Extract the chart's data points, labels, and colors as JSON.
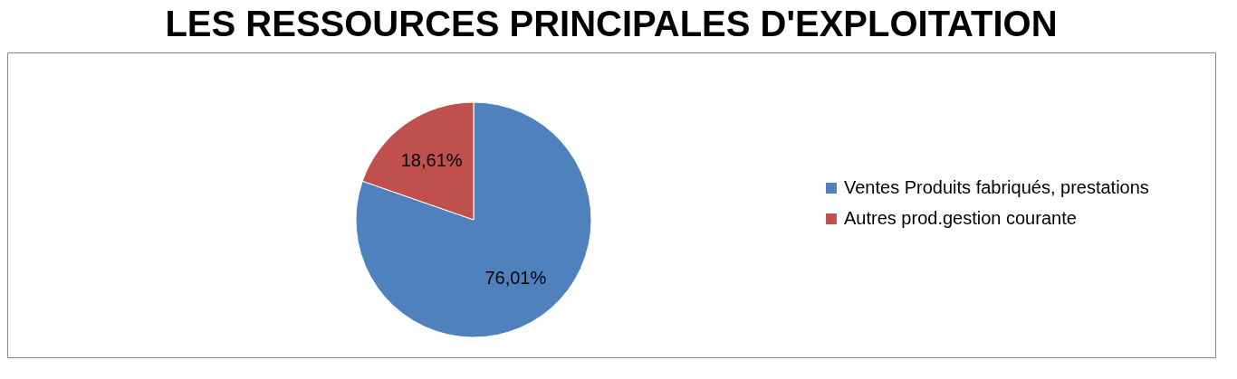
{
  "chart_data": {
    "type": "pie",
    "title": "LES RESSOURCES PRINCIPALES D'EXPLOITATION",
    "categories": [
      "Ventes Produits fabriqués, prestations",
      "Autres prod.gestion courante"
    ],
    "values": [
      76.01,
      18.61
    ],
    "colors": [
      "#4f81bd",
      "#c0504d"
    ],
    "value_labels": [
      "76,01%",
      "18,61%"
    ],
    "legend": "right"
  }
}
